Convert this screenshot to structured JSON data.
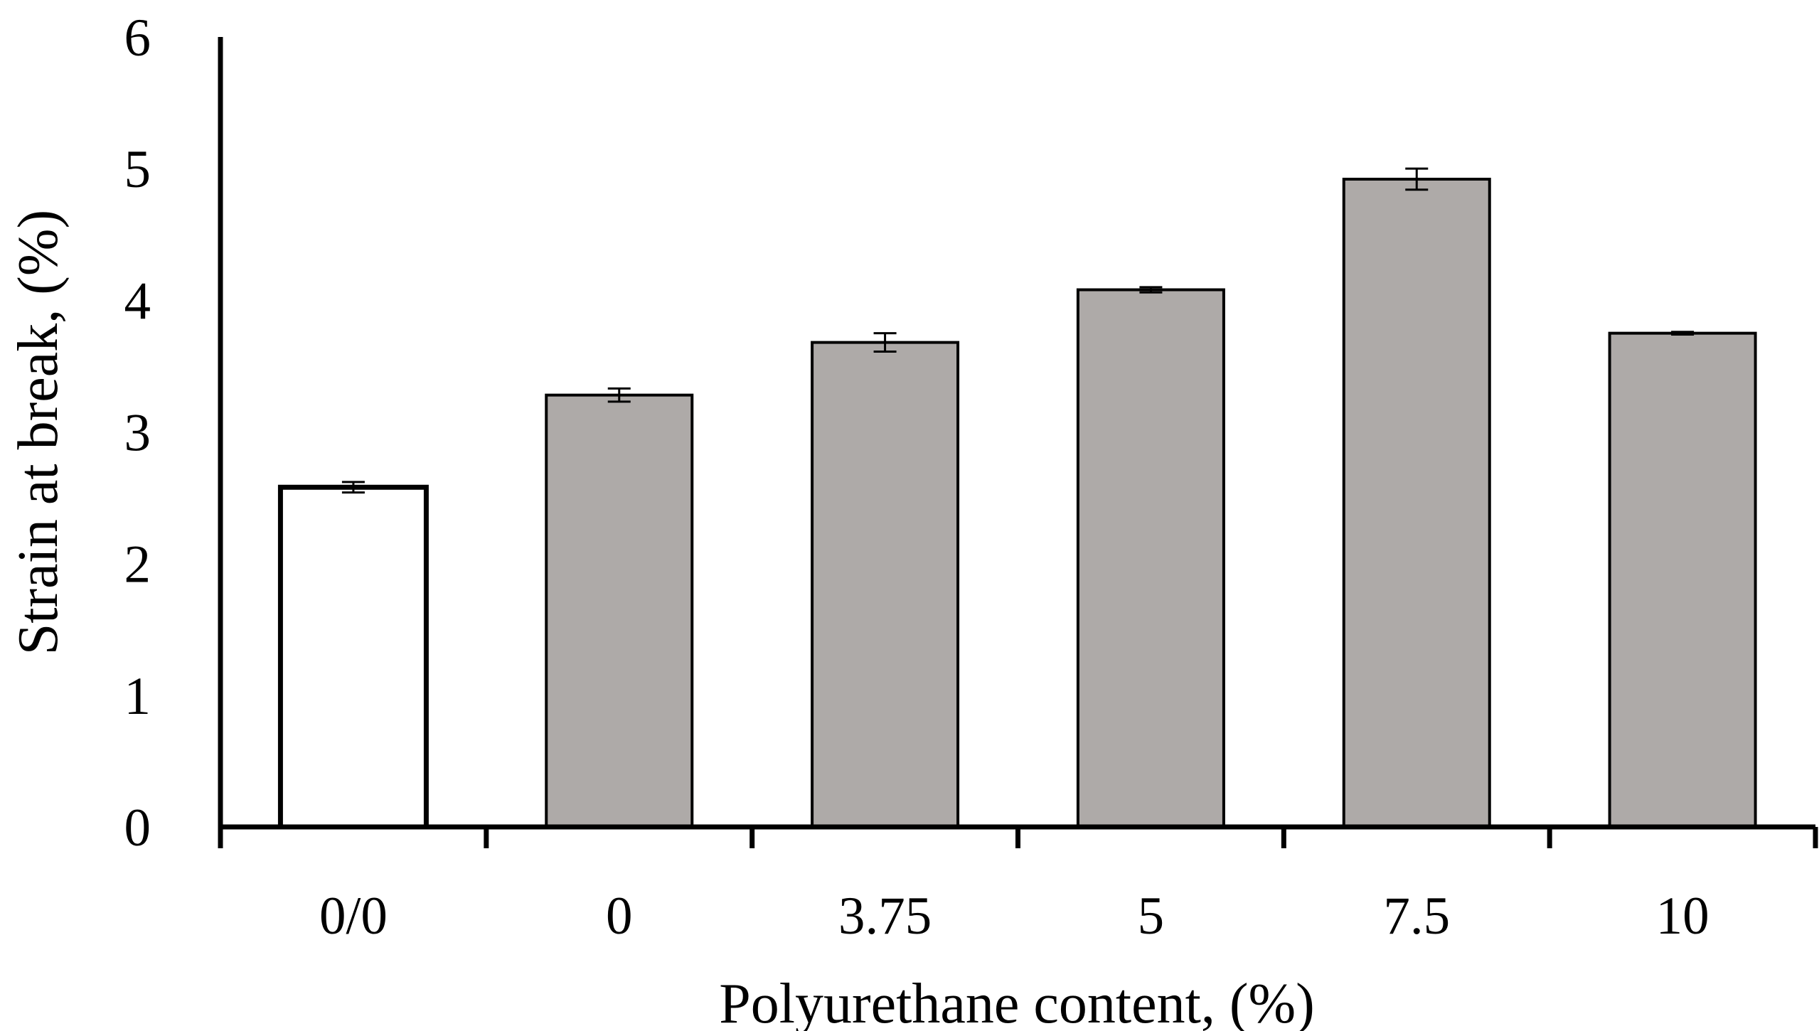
{
  "chart_data": {
    "type": "bar",
    "title": "",
    "xlabel": "Polyurethane content, (%)",
    "ylabel": "Strain at break, (%)",
    "categories": [
      "0/0",
      "0",
      "3.75",
      "5",
      "7.5",
      "10"
    ],
    "values": [
      2.58,
      3.28,
      3.68,
      4.08,
      4.92,
      3.75
    ],
    "errors": [
      0.04,
      0.05,
      0.07,
      0.02,
      0.08,
      0.01
    ],
    "bar_colors": [
      "#ffffff",
      "#aeaaa8",
      "#aeaaa8",
      "#aeaaa8",
      "#aeaaa8",
      "#aeaaa8"
    ],
    "ylim": [
      0,
      6
    ],
    "yticks": [
      "0",
      "1",
      "2",
      "3",
      "4",
      "5",
      "6"
    ],
    "grid": false,
    "legend": "none"
  }
}
